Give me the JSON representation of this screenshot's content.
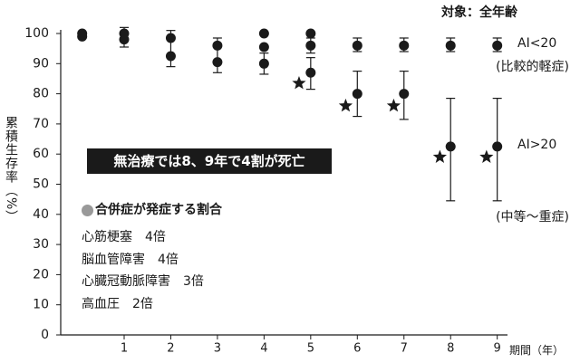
{
  "header": {
    "target_note": "対象：全年齢"
  },
  "chart_data": {
    "type": "scatter",
    "xlabel": "期間（年）",
    "ylabel": "累積生存率（%）",
    "xlim": [
      -0.36,
      9.22
    ],
    "ylim": [
      0,
      100
    ],
    "xticks": [
      1,
      2,
      3,
      4,
      5,
      6,
      7,
      8,
      9
    ],
    "yticks": [
      0,
      10,
      20,
      30,
      40,
      50,
      60,
      70,
      80,
      90,
      100
    ],
    "grid": false,
    "series": [
      {
        "name": "AI<20",
        "sublabel": "(比較的軽症)",
        "marker": "circle",
        "color": "#1a1a1a",
        "points": [
          {
            "x": 0.1,
            "y": 100
          },
          {
            "x": 1,
            "y": 100
          },
          {
            "x": 2,
            "y": 98.5
          },
          {
            "x": 3,
            "y": 96
          },
          {
            "x": 4,
            "y": 95.5
          },
          {
            "x": 5,
            "y": 96
          },
          {
            "x": 6,
            "y": 96
          },
          {
            "x": 7,
            "y": 96
          },
          {
            "x": 8,
            "y": 96
          },
          {
            "x": 9,
            "y": 96
          }
        ]
      },
      {
        "name": "AI>20",
        "sublabel": "(中等～重症)",
        "marker": "circle",
        "color": "#1a1a1a",
        "points": [
          {
            "x": 0.1,
            "y": 99
          },
          {
            "x": 1,
            "y": 98
          },
          {
            "x": 2,
            "y": 92.5
          },
          {
            "x": 3,
            "y": 90.5
          },
          {
            "x": 4,
            "y": 90
          },
          {
            "x": 5,
            "y": 87
          },
          {
            "x": 6,
            "y": 80
          },
          {
            "x": 7,
            "y": 80
          },
          {
            "x": 8,
            "y": 62.5
          },
          {
            "x": 9,
            "y": 62.5
          }
        ]
      },
      {
        "marker": "circle",
        "color": "#1a1a1a",
        "points": [
          {
            "x": 4,
            "y": 100
          },
          {
            "x": 5,
            "y": 100
          }
        ]
      }
    ],
    "error_bars": [
      {
        "x": 1,
        "low": 95.5,
        "high": 102
      },
      {
        "x": 2,
        "low": 89,
        "high": 101
      },
      {
        "x": 3,
        "low": 87,
        "high": 98.5
      },
      {
        "x": 4,
        "low": 86.5,
        "high": 93.5
      },
      {
        "x": 5,
        "low": 81.5,
        "high": 92
      },
      {
        "x": 5,
        "low": 93.5,
        "high": 98.5
      },
      {
        "x": 6,
        "low": 72.5,
        "high": 87.5
      },
      {
        "x": 6,
        "low": 94,
        "high": 98.5
      },
      {
        "x": 7,
        "low": 71.5,
        "high": 87.5
      },
      {
        "x": 7,
        "low": 94,
        "high": 98.5
      },
      {
        "x": 8,
        "low": 44.5,
        "high": 78.5
      },
      {
        "x": 8,
        "low": 94,
        "high": 98.5
      },
      {
        "x": 9,
        "low": 44.5,
        "high": 78.5
      },
      {
        "x": 9,
        "low": 94,
        "high": 98.5
      }
    ],
    "significance_markers": {
      "marker": "star",
      "color": "#1a1a1a",
      "points": [
        {
          "x": 4.75,
          "y": 83.5
        },
        {
          "x": 5.75,
          "y": 76
        },
        {
          "x": 6.78,
          "y": 76
        },
        {
          "x": 7.77,
          "y": 59
        },
        {
          "x": 8.77,
          "y": 59
        }
      ]
    }
  },
  "callout": {
    "text": "無治療では8、9年で4割が死亡"
  },
  "complications": {
    "heading": "合併症が発症する割合",
    "bullet_color": "#999999",
    "items": [
      {
        "name": "心筋梗塞",
        "value": "4倍"
      },
      {
        "name": "脳血管障害",
        "value": "4倍"
      },
      {
        "name": "心臓冠動脈障害",
        "value": "3倍"
      },
      {
        "name": "高血圧",
        "value": "2倍"
      }
    ]
  }
}
